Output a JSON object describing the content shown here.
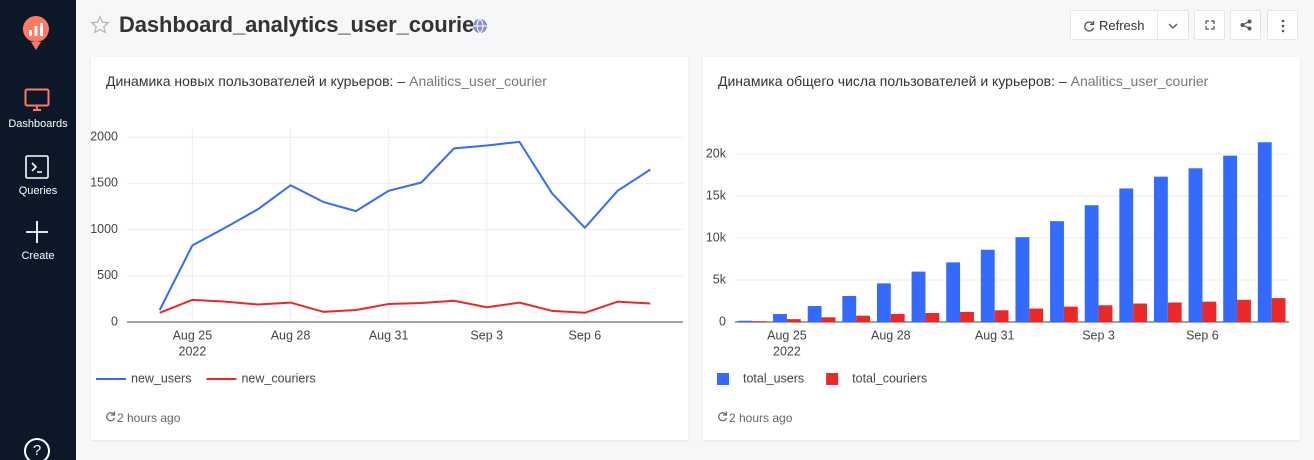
{
  "sidebar": {
    "nav": [
      "Dashboards",
      "Queries",
      "Create"
    ],
    "help": "?"
  },
  "header": {
    "title": "Dashboard_analytics_user_courier",
    "refresh": "Refresh"
  },
  "chart_data": [
    {
      "type": "line",
      "title": "Динамика новых пользователей и курьеров: –",
      "source": "Analitics_user_courier",
      "updated": "2 hours ago",
      "x": [
        "2022-08-24",
        "2022-08-25",
        "2022-08-26",
        "2022-08-27",
        "2022-08-28",
        "2022-08-29",
        "2022-08-30",
        "2022-08-31",
        "2022-09-01",
        "2022-09-02",
        "2022-09-03",
        "2022-09-04",
        "2022-09-05",
        "2022-09-06",
        "2022-09-07",
        "2022-09-08"
      ],
      "series": [
        {
          "name": "new_users",
          "color": "#356aff",
          "values": [
            130,
            830,
            1020,
            1220,
            1480,
            1300,
            1200,
            1420,
            1510,
            1880,
            1910,
            1950,
            1390,
            1020,
            1420,
            1650
          ]
        },
        {
          "name": "new_couriers",
          "color": "#e92828",
          "values": [
            100,
            240,
            220,
            190,
            210,
            110,
            130,
            195,
            205,
            230,
            160,
            210,
            120,
            100,
            220,
            200
          ]
        }
      ],
      "xlim": [
        "2022-08-23",
        "2022-09-09"
      ],
      "xticks": [
        {
          "value": "2022-08-25",
          "label": "Aug 25",
          "year": "2022"
        },
        {
          "value": "2022-08-28",
          "label": "Aug 28"
        },
        {
          "value": "2022-08-31",
          "label": "Aug 31"
        },
        {
          "value": "2022-09-03",
          "label": "Sep 3"
        },
        {
          "value": "2022-09-06",
          "label": "Sep 6"
        }
      ],
      "ylim": [
        0,
        2100
      ],
      "yticks": [
        0,
        500,
        1000,
        1500,
        2000
      ],
      "grid": true
    },
    {
      "type": "bar",
      "title": "Динамика общего числа пользователей и курьеров: –",
      "source": "Analitics_user_courier",
      "updated": "2 hours ago",
      "x": [
        "2022-08-24",
        "2022-08-25",
        "2022-08-26",
        "2022-08-27",
        "2022-08-28",
        "2022-08-29",
        "2022-08-30",
        "2022-08-31",
        "2022-09-01",
        "2022-09-02",
        "2022-09-03",
        "2022-09-04",
        "2022-09-05",
        "2022-09-06",
        "2022-09-07",
        "2022-09-08"
      ],
      "series": [
        {
          "name": "total_users",
          "color": "#356aff",
          "values": [
            150,
            950,
            1900,
            3100,
            4600,
            6000,
            7100,
            8600,
            10100,
            12000,
            13900,
            15900,
            17300,
            18300,
            19800,
            21400
          ]
        },
        {
          "name": "total_couriers",
          "color": "#e92828",
          "values": [
            100,
            340,
            560,
            750,
            960,
            1070,
            1200,
            1395,
            1600,
            1830,
            1990,
            2200,
            2320,
            2420,
            2640,
            2840
          ]
        }
      ],
      "xlim": [
        "2022-08-23T12:00:00Z",
        "2022-09-08T12:00:00Z"
      ],
      "xticks": [
        {
          "value": "2022-08-25",
          "label": "Aug 25",
          "year": "2022"
        },
        {
          "value": "2022-08-28",
          "label": "Aug 28"
        },
        {
          "value": "2022-08-31",
          "label": "Aug 31"
        },
        {
          "value": "2022-09-03",
          "label": "Sep 3"
        },
        {
          "value": "2022-09-06",
          "label": "Sep 6"
        }
      ],
      "ylim": [
        0,
        22500
      ],
      "yticks": [
        0,
        {
          "value": 5000,
          "label": "5k"
        },
        {
          "value": 10000,
          "label": "10k"
        },
        {
          "value": 15000,
          "label": "15k"
        },
        {
          "value": 20000,
          "label": "20k"
        }
      ],
      "grid": true
    }
  ]
}
